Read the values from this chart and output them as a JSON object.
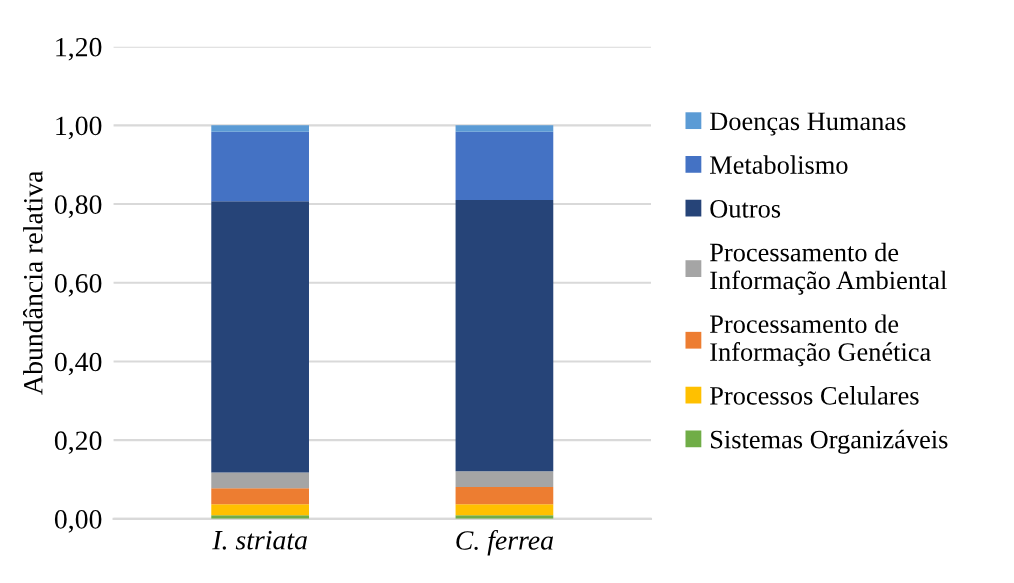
{
  "chart_data": {
    "type": "bar",
    "stacked": true,
    "ylabel": "Abundância relativa",
    "categories": [
      "I. striata",
      "C. ferrea"
    ],
    "series": [
      {
        "name": "Sistemas Organizáveis",
        "color": "#70ad47",
        "values": [
          0.009,
          0.009
        ]
      },
      {
        "name": "Processos Celulares",
        "color": "#ffc000",
        "values": [
          0.028,
          0.028
        ]
      },
      {
        "name": "Processamento de Informação Genética",
        "color": "#ed7d31",
        "values": [
          0.041,
          0.044
        ]
      },
      {
        "name": "Processamento de Informação Ambiental",
        "color": "#a5a5a5",
        "values": [
          0.04,
          0.04
        ]
      },
      {
        "name": "Outros",
        "color": "#264478",
        "values": [
          0.689,
          0.689
        ]
      },
      {
        "name": "Metabolismo",
        "color": "#4472c4",
        "values": [
          0.177,
          0.174
        ]
      },
      {
        "name": "Doenças Humanas",
        "color": "#5b9bd5",
        "values": [
          0.016,
          0.016
        ]
      }
    ],
    "ylim": [
      0,
      1.2
    ],
    "yticks": [
      {
        "value": 0,
        "label": "0,00"
      },
      {
        "value": 0.2,
        "label": "0,20"
      },
      {
        "value": 0.4,
        "label": "0,40"
      },
      {
        "value": 0.6,
        "label": "0,60"
      },
      {
        "value": 0.8,
        "label": "0,80"
      },
      {
        "value": 1.0,
        "label": "1,00"
      },
      {
        "value": 1.2,
        "label": "1,20"
      }
    ],
    "grid": "y",
    "legend": "right"
  }
}
